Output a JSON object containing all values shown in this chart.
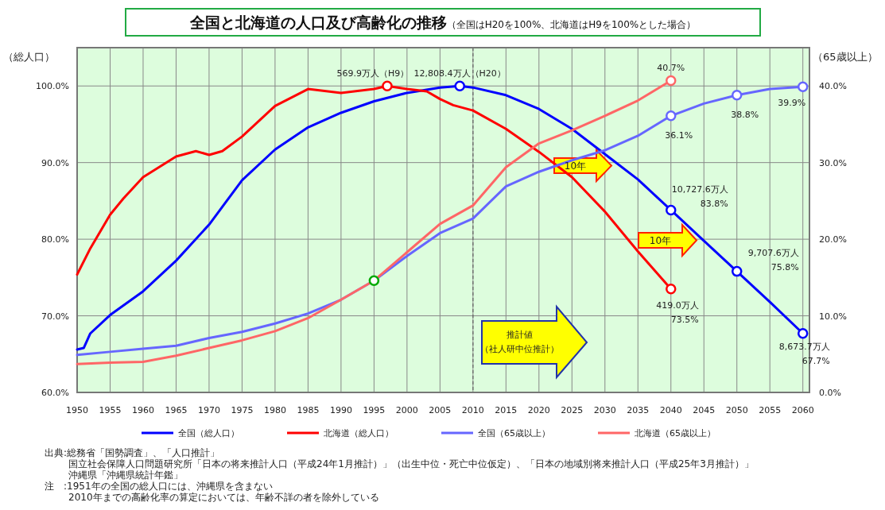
{
  "chart_data": {
    "type": "line",
    "title": "全国と北海道の人口及び高齢化の推移",
    "subtitle": "（全国はH20を100%、北海道はH9を100%とした場合）",
    "ylabel": "（総人口）",
    "y2label": "（65歳以上）",
    "xlim": [
      1950,
      2061
    ],
    "xticks": [
      1950,
      1955,
      1960,
      1965,
      1970,
      1975,
      1980,
      1985,
      1990,
      1995,
      2000,
      2005,
      2010,
      2015,
      2020,
      2025,
      2030,
      2035,
      2040,
      2045,
      2050,
      2055,
      2060
    ],
    "ylim": [
      60,
      105
    ],
    "yticks": [
      {
        "value": 60,
        "label": "60.0%"
      },
      {
        "value": 70,
        "label": "70.0%"
      },
      {
        "value": 80,
        "label": "80.0%"
      },
      {
        "value": 90,
        "label": "90.0%"
      },
      {
        "value": 100,
        "label": "100.0%"
      }
    ],
    "y2lim": [
      0,
      45
    ],
    "y2ticks": [
      {
        "value": 0,
        "label": "0.0%"
      },
      {
        "value": 10,
        "label": "10.0%"
      },
      {
        "value": 20,
        "label": "20.0%"
      },
      {
        "value": 30,
        "label": "30.0%"
      },
      {
        "value": 40,
        "label": "40.0%"
      }
    ],
    "grid": true,
    "legend": "bottom",
    "line_style": "solid",
    "ref_lines": [
      {
        "axis": "x",
        "value": 2010,
        "color": "#666666",
        "line_style": "dashed"
      }
    ],
    "series": [
      {
        "name": "全国（総人口）",
        "color": "#0000ff",
        "x": [
          1950,
          1951,
          1952,
          1955,
          1960,
          1965,
          1970,
          1975,
          1980,
          1985,
          1990,
          1995,
          2000,
          2005,
          2008,
          2010,
          2015,
          2020,
          2025,
          2030,
          2035,
          2040,
          2045,
          2050,
          2055,
          2060
        ],
        "values": [
          65.6,
          65.8,
          67.7,
          70.1,
          73.2,
          77.2,
          81.9,
          87.7,
          91.7,
          94.6,
          96.5,
          98.0,
          99.1,
          99.8,
          100,
          99.8,
          98.8,
          97.0,
          94.4,
          91.1,
          87.8,
          83.8,
          79.8,
          75.8,
          71.8,
          67.7
        ]
      },
      {
        "name": "北海道（総人口）",
        "color": "#ff0000",
        "x": [
          1950,
          1952,
          1955,
          1957,
          1960,
          1965,
          1968,
          1970,
          1972,
          1975,
          1980,
          1985,
          1988,
          1990,
          1995,
          1997,
          2000,
          2003,
          2005,
          2007,
          2010,
          2015,
          2020,
          2025,
          2030,
          2035,
          2040
        ],
        "values": [
          75.4,
          78.8,
          83.2,
          85.3,
          88.1,
          90.8,
          91.5,
          91.0,
          91.5,
          93.4,
          97.4,
          99.6,
          99.3,
          99.1,
          99.6,
          100,
          99.6,
          99.3,
          98.3,
          97.5,
          96.8,
          94.4,
          91.4,
          88.1,
          83.6,
          78.4,
          73.5
        ]
      },
      {
        "name": "全国（65歳以上）",
        "color": "#6666ff",
        "axis": "y2",
        "x": [
          1950,
          1955,
          1960,
          1965,
          1970,
          1975,
          1980,
          1985,
          1990,
          1995,
          2000,
          2005,
          2010,
          2015,
          2020,
          2025,
          2030,
          2035,
          2040,
          2045,
          2050,
          2055,
          2060
        ],
        "values": [
          4.9,
          5.3,
          5.7,
          6.1,
          7.1,
          7.9,
          9.0,
          10.3,
          12.1,
          14.6,
          17.8,
          20.8,
          22.7,
          26.9,
          28.8,
          30.3,
          31.6,
          33.5,
          36.1,
          37.7,
          38.8,
          39.6,
          39.9
        ]
      },
      {
        "name": "北海道（65歳以上）",
        "color": "#ff6666",
        "axis": "y2",
        "x": [
          1950,
          1955,
          1960,
          1965,
          1970,
          1975,
          1980,
          1985,
          1990,
          1995,
          2000,
          2005,
          2010,
          2015,
          2020,
          2025,
          2030,
          2035,
          2040
        ],
        "values": [
          3.7,
          3.9,
          4.0,
          4.8,
          5.8,
          6.8,
          8.0,
          9.7,
          12.1,
          14.6,
          18.3,
          22.0,
          24.4,
          29.4,
          32.5,
          34.2,
          36.1,
          38.1,
          40.7
        ]
      },
      {
        "type": "scatter",
        "marker": "circle",
        "color": "#0000ff",
        "x": [
          2008,
          2040,
          2050,
          2060
        ],
        "values": [
          100,
          83.8,
          75.8,
          67.7
        ],
        "value_labels": [
          "12,808.4万人（H20）",
          "10,727.6万人\n83.8%",
          "9,707.6万人\n75.8%",
          "8,673.7万人\n67.7%"
        ]
      },
      {
        "type": "scatter",
        "marker": "circle",
        "color": "#ff0000",
        "x": [
          1997,
          2040
        ],
        "values": [
          100,
          73.5
        ],
        "value_labels": [
          "569.9万人（H9）",
          "419.0万人\n73.5%"
        ]
      },
      {
        "type": "scatter",
        "marker": "circle",
        "color": "#6666ff",
        "axis": "y2",
        "x": [
          2040,
          2050,
          2060
        ],
        "values": [
          36.1,
          38.8,
          39.9
        ],
        "value_labels": [
          "36.1%",
          "38.8%",
          "39.9%"
        ]
      },
      {
        "type": "scatter",
        "marker": "circle",
        "color": "#ff6666",
        "axis": "y2",
        "x": [
          2040
        ],
        "values": [
          40.7
        ],
        "value_labels": [
          "40.7%"
        ]
      },
      {
        "type": "scatter",
        "marker": "circle",
        "color": "#00aa00",
        "axis": "y2",
        "x": [
          1995
        ],
        "values": [
          14.6
        ]
      }
    ],
    "annotations": [
      "10年",
      "10年",
      "推計値",
      "（社人研中位推計）",
      "出典:総務省「国勢調査」、「人口推計」",
      "国立社会保障人口問題研究所「日本の将来推計人口（平成24年1月推計）」（出生中位・死亡中位仮定）、「日本の地域別将来推計人口（平成25年3月推計）」",
      "沖縄県「沖縄県統計年鑑」",
      "注　:1951年の全国の総人口には、沖縄県を含まない",
      "2010年までの高齢化率の算定においては、年齢不詳の者を除外している"
    ]
  }
}
